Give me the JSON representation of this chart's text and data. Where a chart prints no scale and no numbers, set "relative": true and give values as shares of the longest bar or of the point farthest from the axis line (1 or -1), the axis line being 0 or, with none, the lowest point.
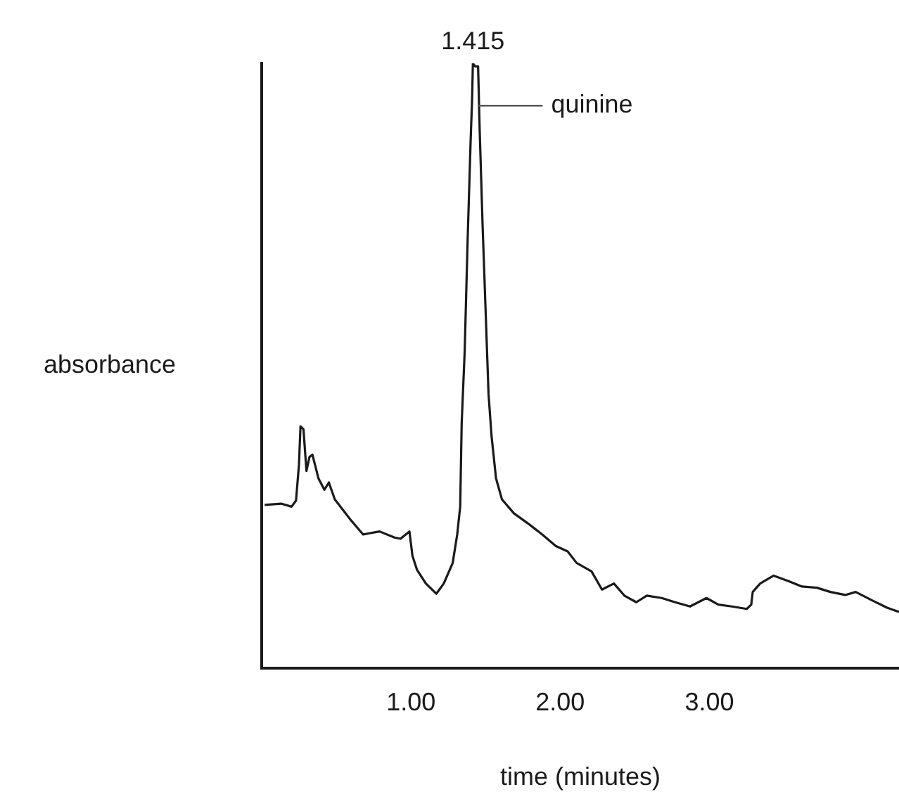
{
  "chart_data": {
    "type": "line",
    "xlabel": "time (minutes)",
    "ylabel": "absorbance",
    "relative": true,
    "grid": false,
    "legend": false,
    "xlim": [
      0,
      4.27
    ],
    "xticks": [
      {
        "value": 1,
        "label": "1.00"
      },
      {
        "value": 2,
        "label": "2.00"
      },
      {
        "value": 3,
        "label": "3.00"
      }
    ],
    "annotations": [
      {
        "text": "1.415",
        "x": 1.415,
        "y": 1
      },
      {
        "text": "quinine",
        "x": 1.43,
        "y": 0.93
      }
    ],
    "series": [
      {
        "color": "#1a1a1a",
        "x": [
          0.02,
          0.13,
          0.2,
          0.23,
          0.25,
          0.26,
          0.28,
          0.3,
          0.32,
          0.34,
          0.38,
          0.42,
          0.45,
          0.49,
          0.54,
          0.6,
          0.68,
          0.72,
          0.79,
          0.89,
          0.93,
          0.99,
          1.01,
          1.04,
          1.1,
          1.17,
          1.22,
          1.28,
          1.31,
          1.33,
          1.34,
          1.36,
          1.38,
          1.4,
          1.41,
          1.415,
          1.43,
          1.45,
          1.46,
          1.48,
          1.5,
          1.52,
          1.54,
          1.57,
          1.61,
          1.69,
          1.78,
          1.88,
          1.97,
          2.05,
          2.11,
          2.21,
          2.28,
          2.36,
          2.43,
          2.51,
          2.58,
          2.68,
          2.77,
          2.87,
          2.98,
          3.06,
          3.15,
          3.25,
          3.28,
          3.29,
          3.34,
          3.43,
          3.53,
          3.62,
          3.72,
          3.81,
          3.91,
          3.98,
          4.09,
          4.19,
          4.27
        ],
        "values": [
          0.27,
          0.272,
          0.267,
          0.277,
          0.337,
          0.4,
          0.395,
          0.326,
          0.349,
          0.353,
          0.314,
          0.295,
          0.307,
          0.279,
          0.263,
          0.244,
          0.221,
          0.223,
          0.226,
          0.216,
          0.214,
          0.226,
          0.186,
          0.163,
          0.14,
          0.123,
          0.14,
          0.174,
          0.221,
          0.267,
          0.405,
          0.523,
          0.709,
          0.872,
          0.942,
          1,
          0.995,
          0.995,
          0.895,
          0.733,
          0.593,
          0.453,
          0.384,
          0.314,
          0.279,
          0.256,
          0.24,
          0.221,
          0.202,
          0.193,
          0.174,
          0.16,
          0.13,
          0.14,
          0.12,
          0.109,
          0.12,
          0.116,
          0.109,
          0.102,
          0.116,
          0.105,
          0.102,
          0.098,
          0.105,
          0.126,
          0.14,
          0.153,
          0.144,
          0.135,
          0.133,
          0.126,
          0.121,
          0.126,
          0.112,
          0.1,
          0.093
        ]
      }
    ]
  }
}
